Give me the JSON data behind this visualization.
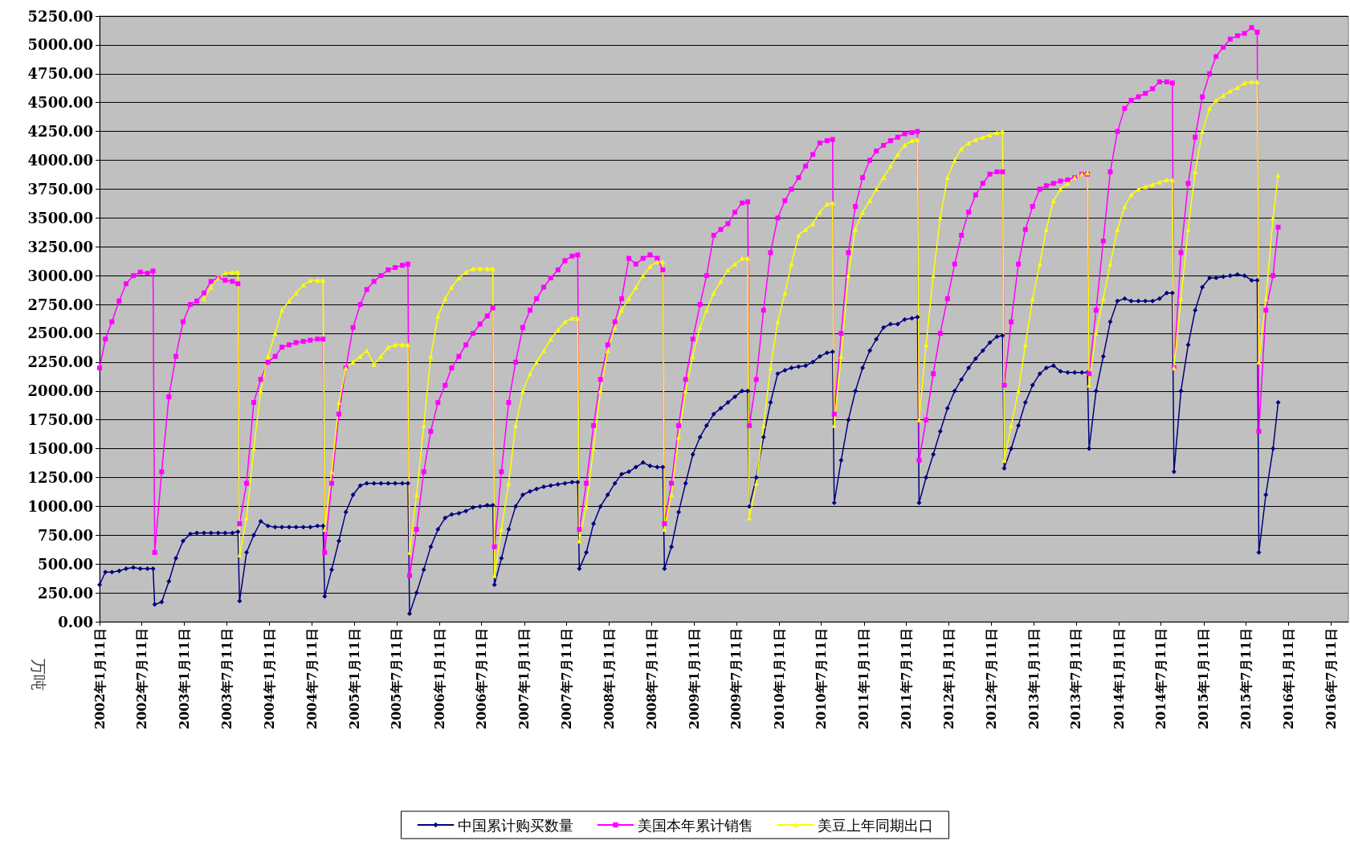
{
  "chart_data": {
    "type": "line",
    "ylabel": "万吨",
    "legend": "bottom",
    "grid": "y",
    "xlim": [
      "2002-01-11",
      "2016-09-24"
    ],
    "xticks": [
      {
        "value": "2002-01-11",
        "label": "2002年1月11日"
      },
      {
        "value": "2002-07-11",
        "label": "2002年7月11日"
      },
      {
        "value": "2003-01-11",
        "label": "2003年1月11日"
      },
      {
        "value": "2003-07-11",
        "label": "2003年7月11日"
      },
      {
        "value": "2004-01-11",
        "label": "2004年1月11日"
      },
      {
        "value": "2004-07-11",
        "label": "2004年7月11日"
      },
      {
        "value": "2005-01-11",
        "label": "2005年1月11日"
      },
      {
        "value": "2005-07-11",
        "label": "2005年7月11日"
      },
      {
        "value": "2006-01-11",
        "label": "2006年1月11日"
      },
      {
        "value": "2006-07-11",
        "label": "2006年7月11日"
      },
      {
        "value": "2007-01-11",
        "label": "2007年1月11日"
      },
      {
        "value": "2007-07-11",
        "label": "2007年7月11日"
      },
      {
        "value": "2008-01-11",
        "label": "2008年1月11日"
      },
      {
        "value": "2008-07-11",
        "label": "2008年7月11日"
      },
      {
        "value": "2009-01-11",
        "label": "2009年1月11日"
      },
      {
        "value": "2009-07-11",
        "label": "2009年7月11日"
      },
      {
        "value": "2010-01-11",
        "label": "2010年1月11日"
      },
      {
        "value": "2010-07-11",
        "label": "2010年7月11日"
      },
      {
        "value": "2011-01-11",
        "label": "2011年1月11日"
      },
      {
        "value": "2011-07-11",
        "label": "2011年7月11日"
      },
      {
        "value": "2012-01-11",
        "label": "2012年1月11日"
      },
      {
        "value": "2012-07-11",
        "label": "2012年7月11日"
      },
      {
        "value": "2013-01-11",
        "label": "2013年1月11日"
      },
      {
        "value": "2013-07-11",
        "label": "2013年7月11日"
      },
      {
        "value": "2014-01-11",
        "label": "2014年1月11日"
      },
      {
        "value": "2014-07-11",
        "label": "2014年7月11日"
      },
      {
        "value": "2015-01-11",
        "label": "2015年1月11日"
      },
      {
        "value": "2015-07-11",
        "label": "2015年7月11日"
      },
      {
        "value": "2016-01-11",
        "label": "2016年1月11日"
      },
      {
        "value": "2016-07-11",
        "label": "2016年7月11日"
      }
    ],
    "ylim": [
      0,
      5250
    ],
    "yticks": [
      {
        "value": 0,
        "label": "0.00"
      },
      {
        "value": 250,
        "label": "250.00"
      },
      {
        "value": 500,
        "label": "500.00"
      },
      {
        "value": 750,
        "label": "750.00"
      },
      {
        "value": 1000,
        "label": "1000.00"
      },
      {
        "value": 1250,
        "label": "1250.00"
      },
      {
        "value": 1500,
        "label": "1500.00"
      },
      {
        "value": 1750,
        "label": "1750.00"
      },
      {
        "value": 2000,
        "label": "2000.00"
      },
      {
        "value": 2250,
        "label": "2250.00"
      },
      {
        "value": 2500,
        "label": "2500.00"
      },
      {
        "value": 2750,
        "label": "2750.00"
      },
      {
        "value": 3000,
        "label": "3000.00"
      },
      {
        "value": 3250,
        "label": "3250.00"
      },
      {
        "value": 3500,
        "label": "3500.00"
      },
      {
        "value": 3750,
        "label": "3750.00"
      },
      {
        "value": 4000,
        "label": "4000.00"
      },
      {
        "value": 4250,
        "label": "4250.00"
      },
      {
        "value": 4500,
        "label": "4500.00"
      },
      {
        "value": 4750,
        "label": "4750.00"
      },
      {
        "value": 5000,
        "label": "5000.00"
      },
      {
        "value": 5250,
        "label": "5250.00"
      }
    ],
    "x": [
      "2002-01-11",
      "2002-02-05",
      "2002-03-05",
      "2002-04-05",
      "2002-05-05",
      "2002-06-05",
      "2002-07-05",
      "2002-08-05",
      "2002-08-29",
      "2002-09-05",
      "2002-10-05",
      "2002-11-05",
      "2002-12-05",
      "2003-01-05",
      "2003-02-05",
      "2003-03-05",
      "2003-04-05",
      "2003-05-05",
      "2003-06-05",
      "2003-07-05",
      "2003-08-05",
      "2003-08-29",
      "2003-09-05",
      "2003-10-05",
      "2003-11-05",
      "2003-12-05",
      "2004-01-05",
      "2004-02-05",
      "2004-03-05",
      "2004-04-05",
      "2004-05-05",
      "2004-06-05",
      "2004-07-05",
      "2004-08-05",
      "2004-08-29",
      "2004-09-05",
      "2004-10-05",
      "2004-11-05",
      "2004-12-05",
      "2005-01-05",
      "2005-02-05",
      "2005-03-05",
      "2005-04-05",
      "2005-05-05",
      "2005-06-05",
      "2005-07-05",
      "2005-08-05",
      "2005-08-29",
      "2005-09-05",
      "2005-10-05",
      "2005-11-05",
      "2005-12-05",
      "2006-01-05",
      "2006-02-05",
      "2006-03-05",
      "2006-04-05",
      "2006-05-05",
      "2006-06-05",
      "2006-07-05",
      "2006-08-05",
      "2006-08-29",
      "2006-09-05",
      "2006-10-05",
      "2006-11-05",
      "2006-12-05",
      "2007-01-05",
      "2007-02-05",
      "2007-03-05",
      "2007-04-05",
      "2007-05-05",
      "2007-06-05",
      "2007-07-05",
      "2007-08-05",
      "2007-08-29",
      "2007-09-05",
      "2007-10-05",
      "2007-11-05",
      "2007-12-05",
      "2008-01-05",
      "2008-02-05",
      "2008-03-05",
      "2008-04-05",
      "2008-05-05",
      "2008-06-05",
      "2008-07-05",
      "2008-08-05",
      "2008-08-29",
      "2008-09-05",
      "2008-10-05",
      "2008-11-05",
      "2008-12-05",
      "2009-01-05",
      "2009-02-05",
      "2009-03-05",
      "2009-04-05",
      "2009-05-05",
      "2009-06-05",
      "2009-07-05",
      "2009-08-05",
      "2009-08-29",
      "2009-09-05",
      "2009-10-05",
      "2009-11-05",
      "2009-12-05",
      "2010-01-05",
      "2010-02-05",
      "2010-03-05",
      "2010-04-05",
      "2010-05-05",
      "2010-06-05",
      "2010-07-05",
      "2010-08-05",
      "2010-08-29",
      "2010-09-05",
      "2010-10-05",
      "2010-11-05",
      "2010-12-05",
      "2011-01-05",
      "2011-02-05",
      "2011-03-05",
      "2011-04-05",
      "2011-05-05",
      "2011-06-05",
      "2011-07-05",
      "2011-08-05",
      "2011-08-29",
      "2011-09-05",
      "2011-10-05",
      "2011-11-05",
      "2011-12-05",
      "2012-01-05",
      "2012-02-05",
      "2012-03-05",
      "2012-04-05",
      "2012-05-05",
      "2012-06-05",
      "2012-07-05",
      "2012-08-05",
      "2012-08-29",
      "2012-09-05",
      "2012-10-05",
      "2012-11-05",
      "2012-12-05",
      "2013-01-05",
      "2013-02-05",
      "2013-03-05",
      "2013-04-05",
      "2013-05-05",
      "2013-06-05",
      "2013-07-05",
      "2013-08-05",
      "2013-08-29",
      "2013-09-05",
      "2013-10-05",
      "2013-11-05",
      "2013-12-05",
      "2014-01-05",
      "2014-02-05",
      "2014-03-05",
      "2014-04-05",
      "2014-05-05",
      "2014-06-05",
      "2014-07-05",
      "2014-08-05",
      "2014-08-29",
      "2014-09-05",
      "2014-10-05",
      "2014-11-05",
      "2014-12-05",
      "2015-01-05",
      "2015-02-05",
      "2015-03-05",
      "2015-04-05",
      "2015-05-05",
      "2015-06-05",
      "2015-07-05",
      "2015-08-05",
      "2015-08-29",
      "2015-09-05",
      "2015-10-05",
      "2015-11-05",
      "2015-11-27"
    ],
    "series": [
      {
        "name": "中国累计购买数量",
        "color": "#000080",
        "marker": "diamond",
        "values": [
          320,
          430,
          430,
          440,
          460,
          470,
          460,
          460,
          460,
          150,
          170,
          350,
          550,
          700,
          760,
          770,
          770,
          770,
          770,
          770,
          770,
          780,
          180,
          600,
          750,
          870,
          830,
          820,
          820,
          820,
          820,
          820,
          820,
          830,
          830,
          220,
          450,
          700,
          950,
          1100,
          1180,
          1200,
          1200,
          1200,
          1200,
          1200,
          1200,
          1200,
          70,
          250,
          450,
          650,
          800,
          900,
          930,
          940,
          960,
          990,
          1000,
          1010,
          1010,
          320,
          550,
          800,
          1000,
          1100,
          1130,
          1150,
          1170,
          1180,
          1190,
          1200,
          1210,
          1210,
          460,
          600,
          850,
          1000,
          1100,
          1200,
          1280,
          1300,
          1340,
          1380,
          1350,
          1340,
          1340,
          460,
          650,
          950,
          1200,
          1450,
          1600,
          1700,
          1800,
          1850,
          1900,
          1950,
          2000,
          2000,
          1000,
          1250,
          1600,
          1900,
          2150,
          2180,
          2200,
          2210,
          2220,
          2250,
          2300,
          2330,
          2340,
          1030,
          1400,
          1750,
          2000,
          2200,
          2350,
          2450,
          2550,
          2580,
          2580,
          2620,
          2630,
          2640,
          1030,
          1250,
          1450,
          1650,
          1850,
          2000,
          2100,
          2200,
          2280,
          2350,
          2420,
          2470,
          2480,
          1330,
          1500,
          1700,
          1900,
          2050,
          2150,
          2200,
          2220,
          2170,
          2160,
          2160,
          2160,
          2160,
          1500,
          2000,
          2300,
          2600,
          2780,
          2800,
          2780,
          2780,
          2780,
          2780,
          2800,
          2850,
          2850,
          1300,
          2000,
          2400,
          2700,
          2900,
          2980,
          2980,
          2990,
          3000,
          3010,
          3000,
          2960,
          2960,
          600,
          1100,
          1500,
          1900
        ]
      },
      {
        "name": "美国本年累计销售",
        "color": "#ff00ff",
        "marker": "square",
        "values": [
          2200,
          2450,
          2600,
          2780,
          2930,
          3000,
          3030,
          3020,
          3040,
          600,
          1300,
          1950,
          2300,
          2600,
          2750,
          2780,
          2850,
          2950,
          2980,
          2960,
          2950,
          2930,
          850,
          1200,
          1900,
          2100,
          2250,
          2300,
          2380,
          2400,
          2420,
          2430,
          2440,
          2450,
          2450,
          600,
          1200,
          1800,
          2200,
          2550,
          2750,
          2880,
          2950,
          3000,
          3050,
          3070,
          3090,
          3100,
          400,
          800,
          1300,
          1650,
          1900,
          2050,
          2200,
          2300,
          2400,
          2500,
          2580,
          2650,
          2720,
          650,
          1300,
          1900,
          2250,
          2550,
          2700,
          2800,
          2900,
          2980,
          3050,
          3130,
          3170,
          3180,
          800,
          1200,
          1700,
          2100,
          2400,
          2600,
          2800,
          3150,
          3100,
          3150,
          3180,
          3150,
          3050,
          850,
          1200,
          1700,
          2100,
          2450,
          2750,
          3000,
          3350,
          3400,
          3450,
          3550,
          3630,
          3640,
          1700,
          2100,
          2700,
          3200,
          3500,
          3650,
          3750,
          3850,
          3950,
          4050,
          4150,
          4170,
          4180,
          1800,
          2500,
          3200,
          3600,
          3850,
          4000,
          4080,
          4130,
          4170,
          4200,
          4230,
          4240,
          4250,
          1400,
          1750,
          2150,
          2500,
          2800,
          3100,
          3350,
          3550,
          3700,
          3800,
          3880,
          3900,
          3900,
          2050,
          2600,
          3100,
          3400,
          3600,
          3750,
          3780,
          3800,
          3820,
          3830,
          3850,
          3880,
          3880,
          2150,
          2700,
          3300,
          3900,
          4250,
          4450,
          4520,
          4550,
          4580,
          4620,
          4680,
          4680,
          4670,
          2200,
          3200,
          3800,
          4200,
          4550,
          4750,
          4900,
          4980,
          5050,
          5080,
          5100,
          5150,
          5110,
          1650,
          2700,
          3000,
          3420
        ]
      },
      {
        "name": "美豆上年同期出口",
        "color": "#ffff00",
        "marker": "triangle",
        "x": [
          "2003-04-05",
          "2003-05-05",
          "2003-06-05",
          "2003-07-05",
          "2003-08-05",
          "2003-08-29",
          "2003-09-05",
          "2003-10-05",
          "2003-11-05",
          "2003-12-05",
          "2004-01-05",
          "2004-02-05",
          "2004-03-05",
          "2004-04-05",
          "2004-05-05",
          "2004-06-05",
          "2004-07-05",
          "2004-08-05",
          "2004-08-29",
          "2004-09-05",
          "2004-10-05",
          "2004-11-05",
          "2004-12-05",
          "2005-01-05",
          "2005-02-05",
          "2005-03-05",
          "2005-04-05",
          "2005-05-05",
          "2005-06-05",
          "2005-07-05",
          "2005-08-05",
          "2005-08-29",
          "2005-09-05",
          "2005-10-05",
          "2005-11-05",
          "2005-12-05",
          "2006-01-05",
          "2006-02-05",
          "2006-03-05",
          "2006-04-05",
          "2006-05-05",
          "2006-06-05",
          "2006-07-05",
          "2006-08-05",
          "2006-08-29",
          "2006-09-05",
          "2006-10-05",
          "2006-11-05",
          "2006-12-05",
          "2007-01-05",
          "2007-02-05",
          "2007-03-05",
          "2007-04-05",
          "2007-05-05",
          "2007-06-05",
          "2007-07-05",
          "2007-08-05",
          "2007-08-29",
          "2007-09-05",
          "2007-10-05",
          "2007-11-05",
          "2007-12-05",
          "2008-01-05",
          "2008-02-05",
          "2008-03-05",
          "2008-04-05",
          "2008-05-05",
          "2008-06-05",
          "2008-07-05",
          "2008-08-05",
          "2008-08-29",
          "2008-09-05",
          "2008-10-05",
          "2008-11-05",
          "2008-12-05",
          "2009-01-05",
          "2009-02-05",
          "2009-03-05",
          "2009-04-05",
          "2009-05-05",
          "2009-06-05",
          "2009-07-05",
          "2009-08-05",
          "2009-08-29",
          "2009-09-05",
          "2009-10-05",
          "2009-11-05",
          "2009-12-05",
          "2010-01-05",
          "2010-02-05",
          "2010-03-05",
          "2010-04-05",
          "2010-05-05",
          "2010-06-05",
          "2010-07-05",
          "2010-08-05",
          "2010-08-29",
          "2010-09-05",
          "2010-10-05",
          "2010-11-05",
          "2010-12-05",
          "2011-01-05",
          "2011-02-05",
          "2011-03-05",
          "2011-04-05",
          "2011-05-05",
          "2011-06-05",
          "2011-07-05",
          "2011-08-05",
          "2011-08-29",
          "2011-09-05",
          "2011-10-05",
          "2011-11-05",
          "2011-12-05",
          "2012-01-05",
          "2012-02-05",
          "2012-03-05",
          "2012-04-05",
          "2012-05-05",
          "2012-06-05",
          "2012-07-05",
          "2012-08-05",
          "2012-08-29",
          "2012-09-05",
          "2012-10-05",
          "2012-11-05",
          "2012-12-05",
          "2013-01-05",
          "2013-02-05",
          "2013-03-05",
          "2013-04-05",
          "2013-05-05",
          "2013-06-05",
          "2013-07-05",
          "2013-08-05",
          "2013-08-29",
          "2013-09-05",
          "2013-10-05",
          "2013-11-05",
          "2013-12-05",
          "2014-01-05",
          "2014-02-05",
          "2014-03-05",
          "2014-04-05",
          "2014-05-05",
          "2014-06-05",
          "2014-07-05",
          "2014-08-05",
          "2014-08-29",
          "2014-09-05",
          "2014-10-05",
          "2014-11-05",
          "2014-12-05",
          "2015-01-05",
          "2015-02-05",
          "2015-03-05",
          "2015-04-05",
          "2015-05-05",
          "2015-06-05",
          "2015-07-05",
          "2015-08-05",
          "2015-08-29",
          "2015-09-05",
          "2015-10-05",
          "2015-11-05",
          "2015-11-27"
        ],
        "values": [
          2800,
          2900,
          2980,
          3020,
          3030,
          3030,
          580,
          900,
          1500,
          2000,
          2300,
          2500,
          2700,
          2780,
          2850,
          2920,
          2960,
          2960,
          2960,
          800,
          1300,
          1900,
          2200,
          2250,
          2300,
          2350,
          2230,
          2300,
          2380,
          2400,
          2400,
          2400,
          600,
          1100,
          1700,
          2300,
          2650,
          2800,
          2900,
          2980,
          3030,
          3060,
          3060,
          3060,
          3060,
          400,
          800,
          1200,
          1700,
          2000,
          2150,
          2250,
          2350,
          2450,
          2530,
          2600,
          2630,
          2630,
          700,
          1000,
          1500,
          2000,
          2350,
          2550,
          2700,
          2800,
          2900,
          3000,
          3080,
          3120,
          3120,
          800,
          1100,
          1600,
          2000,
          2300,
          2550,
          2700,
          2850,
          2950,
          3050,
          3100,
          3150,
          3150,
          900,
          1200,
          1700,
          2200,
          2600,
          2850,
          3100,
          3350,
          3400,
          3450,
          3550,
          3620,
          3630,
          1700,
          2300,
          3000,
          3400,
          3550,
          3650,
          3750,
          3850,
          3950,
          4050,
          4130,
          4170,
          4180,
          1750,
          2400,
          3000,
          3500,
          3850,
          4000,
          4100,
          4150,
          4180,
          4200,
          4220,
          4240,
          4250,
          1400,
          1700,
          2000,
          2400,
          2800,
          3100,
          3400,
          3650,
          3750,
          3800,
          3850,
          3880,
          3890,
          2050,
          2500,
          2800,
          3100,
          3400,
          3600,
          3700,
          3750,
          3770,
          3790,
          3810,
          3830,
          3830,
          2200,
          2800,
          3400,
          3900,
          4250,
          4450,
          4520,
          4560,
          4600,
          4630,
          4670,
          4680,
          4680,
          2250,
          2800,
          3500,
          3870
        ]
      }
    ]
  }
}
